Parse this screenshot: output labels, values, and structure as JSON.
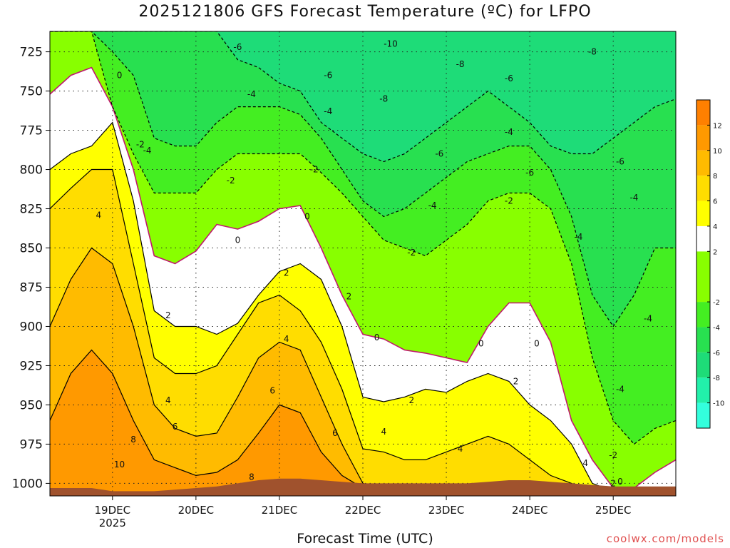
{
  "chart_data": {
    "type": "heatmap",
    "title": "2025121806 GFS Forecast Temperature (ºC) for LFPO",
    "xlabel": "Forecast Time (UTC)",
    "ylabel": "",
    "credit": "coolwx.com/models",
    "y_ticks": [
      "725",
      "750",
      "775",
      "800",
      "825",
      "850",
      "875",
      "900",
      "925",
      "950",
      "975",
      "1000"
    ],
    "ylim": [
      1008,
      712
    ],
    "x_ticks": [
      {
        "label": "19DEC",
        "sub": "2025",
        "t": 18
      },
      {
        "label": "20DEC",
        "sub": "",
        "t": 42
      },
      {
        "label": "21DEC",
        "sub": "",
        "t": 66
      },
      {
        "label": "22DEC",
        "sub": "",
        "t": 90
      },
      {
        "label": "23DEC",
        "sub": "",
        "t": 114
      },
      {
        "label": "24DEC",
        "sub": "",
        "t": 138
      },
      {
        "label": "25DEC",
        "sub": "",
        "t": 162
      }
    ],
    "xlim": [
      0,
      180
    ],
    "colorbar": {
      "levels": [
        -12,
        -10,
        -8,
        -6,
        -4,
        -2,
        2,
        4,
        6,
        8,
        10,
        12,
        14
      ],
      "tick_labels": [
        "-10",
        "-8",
        "-6",
        "-4",
        "-2",
        "2",
        "4",
        "6",
        "8",
        "10",
        "12"
      ],
      "colors": [
        "#33ffdd",
        "#22f0aa",
        "#1edc78",
        "#28e050",
        "#44ee22",
        "#88ff00",
        "#ffffff",
        "#ffff00",
        "#ffdd00",
        "#ffbb00",
        "#ff9900",
        "#ff8000",
        "#ff6000"
      ]
    },
    "x": [
      0,
      6,
      12,
      18,
      24,
      30,
      36,
      42,
      48,
      54,
      60,
      66,
      72,
      78,
      84,
      90,
      96,
      102,
      108,
      114,
      120,
      126,
      132,
      138,
      144,
      150,
      156,
      162,
      168,
      174,
      180
    ],
    "isotherms": [
      {
        "value": 0,
        "p": [
          752,
          740,
          735,
          760,
          800,
          855,
          860,
          852,
          835,
          838,
          833,
          825,
          823,
          850,
          880,
          905,
          908,
          915,
          917,
          920,
          923,
          900,
          885,
          885,
          910,
          960,
          985,
          1003,
          1003,
          993,
          985
        ]
      },
      {
        "value": -2,
        "p": [
          712,
          712,
          712,
          760,
          790,
          815,
          815,
          815,
          800,
          790,
          790,
          790,
          790,
          802,
          815,
          830,
          845,
          850,
          855,
          845,
          835,
          820,
          815,
          815,
          825,
          860,
          920,
          960,
          975,
          965,
          960
        ]
      },
      {
        "value": -4,
        "p": [
          712,
          712,
          712,
          725,
          740,
          780,
          785,
          785,
          770,
          760,
          760,
          760,
          765,
          780,
          800,
          820,
          830,
          825,
          815,
          805,
          795,
          790,
          785,
          785,
          800,
          830,
          880,
          900,
          880,
          850,
          850
        ]
      },
      {
        "value": -6,
        "p": [
          712,
          712,
          712,
          712,
          712,
          712,
          712,
          712,
          712,
          730,
          735,
          745,
          750,
          770,
          780,
          790,
          795,
          790,
          780,
          770,
          760,
          750,
          760,
          770,
          785,
          790,
          790,
          780,
          770,
          760,
          755
        ]
      },
      {
        "value": 2,
        "p": [
          800,
          790,
          785,
          770,
          820,
          890,
          900,
          900,
          905,
          898,
          880,
          865,
          860,
          870,
          900,
          945,
          948,
          945,
          940,
          942,
          935,
          930,
          935,
          950,
          960,
          975,
          1000,
          1005,
          1005,
          1005,
          1005
        ]
      },
      {
        "value": 4,
        "p": [
          825,
          812,
          800,
          800,
          860,
          920,
          930,
          930,
          925,
          905,
          885,
          880,
          890,
          910,
          940,
          978,
          980,
          985,
          985,
          980,
          975,
          970,
          975,
          985,
          995,
          1000,
          1005,
          1005,
          1005,
          1005,
          1005
        ]
      },
      {
        "value": 6,
        "p": [
          900,
          870,
          850,
          860,
          900,
          950,
          965,
          970,
          968,
          945,
          920,
          910,
          915,
          945,
          975,
          1000,
          1003,
          1003,
          1003,
          1003,
          1003,
          1003,
          1003,
          1003,
          1003,
          1003,
          1005,
          1005,
          1005,
          1005,
          1005
        ]
      },
      {
        "value": 8,
        "p": [
          960,
          930,
          915,
          930,
          960,
          985,
          990,
          995,
          993,
          985,
          968,
          950,
          955,
          980,
          995,
          1003,
          1003,
          1003,
          1003,
          1003,
          1003,
          1003,
          1003,
          1003,
          1003,
          1003,
          1005,
          1005,
          1005,
          1005,
          1005
        ]
      }
    ],
    "contour_labels": [
      {
        "text": "0",
        "t": 20,
        "p": 740
      },
      {
        "text": "0",
        "t": 54,
        "p": 845
      },
      {
        "text": "0",
        "t": 74,
        "p": 830
      },
      {
        "text": "0",
        "t": 94,
        "p": 907
      },
      {
        "text": "0",
        "t": 124,
        "p": 911
      },
      {
        "text": "0",
        "t": 140,
        "p": 911
      },
      {
        "text": "0",
        "t": 164,
        "p": 999
      },
      {
        "text": "-2",
        "t": 26,
        "p": 784
      },
      {
        "text": "-2",
        "t": 52,
        "p": 807
      },
      {
        "text": "-2",
        "t": 76,
        "p": 800
      },
      {
        "text": "-2",
        "t": 104,
        "p": 853
      },
      {
        "text": "-2",
        "t": 132,
        "p": 820
      },
      {
        "text": "-2",
        "t": 162,
        "p": 982
      },
      {
        "text": "-4",
        "t": 28,
        "p": 788
      },
      {
        "text": "-4",
        "t": 58,
        "p": 752
      },
      {
        "text": "-4",
        "t": 80,
        "p": 763
      },
      {
        "text": "-4",
        "t": 110,
        "p": 823
      },
      {
        "text": "-4",
        "t": 132,
        "p": 776
      },
      {
        "text": "-4",
        "t": 152,
        "p": 843
      },
      {
        "text": "-4",
        "t": 168,
        "p": 818
      },
      {
        "text": "-4",
        "t": 172,
        "p": 895
      },
      {
        "text": "-4",
        "t": 164,
        "p": 940
      },
      {
        "text": "-6",
        "t": 54,
        "p": 722
      },
      {
        "text": "-6",
        "t": 80,
        "p": 740
      },
      {
        "text": "-6",
        "t": 112,
        "p": 790
      },
      {
        "text": "-6",
        "t": 132,
        "p": 742
      },
      {
        "text": "-6",
        "t": 138,
        "p": 802
      },
      {
        "text": "-6",
        "t": 164,
        "p": 795
      },
      {
        "text": "-8",
        "t": 96,
        "p": 755
      },
      {
        "text": "-8",
        "t": 118,
        "p": 733
      },
      {
        "text": "-8",
        "t": 156,
        "p": 725
      },
      {
        "text": "-10",
        "t": 98,
        "p": 720
      },
      {
        "text": "2",
        "t": 34,
        "p": 893
      },
      {
        "text": "2",
        "t": 68,
        "p": 866
      },
      {
        "text": "2",
        "t": 86,
        "p": 881
      },
      {
        "text": "2",
        "t": 104,
        "p": 947
      },
      {
        "text": "2",
        "t": 134,
        "p": 935
      },
      {
        "text": "2",
        "t": 162,
        "p": 1000
      },
      {
        "text": "4",
        "t": 14,
        "p": 829
      },
      {
        "text": "4",
        "t": 34,
        "p": 947
      },
      {
        "text": "4",
        "t": 68,
        "p": 908
      },
      {
        "text": "4",
        "t": 96,
        "p": 967
      },
      {
        "text": "4",
        "t": 118,
        "p": 978
      },
      {
        "text": "4",
        "t": 154,
        "p": 987
      },
      {
        "text": "6",
        "t": 36,
        "p": 964
      },
      {
        "text": "6",
        "t": 64,
        "p": 941
      },
      {
        "text": "6",
        "t": 82,
        "p": 968
      },
      {
        "text": "8",
        "t": 24,
        "p": 972
      },
      {
        "text": "8",
        "t": 58,
        "p": 996
      },
      {
        "text": "10",
        "t": 20,
        "p": 988
      }
    ],
    "ground": [
      1003,
      1003,
      1003,
      1005,
      1005,
      1005,
      1004,
      1003,
      1002,
      1000,
      998,
      997,
      997,
      998,
      999,
      1000,
      1000,
      1000,
      1000,
      1000,
      1000,
      999,
      998,
      998,
      999,
      1000,
      1001,
      1002,
      1002,
      1002,
      1002
    ]
  }
}
